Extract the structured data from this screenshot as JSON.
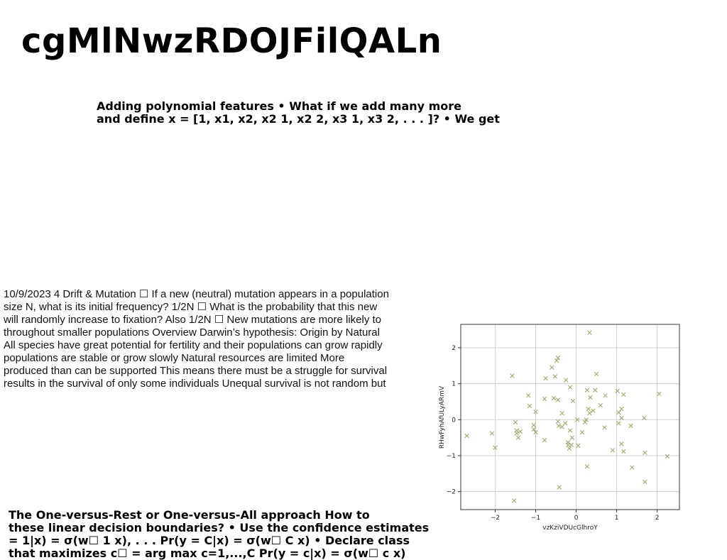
{
  "title": "cgMlNwzRDOJFilQALn",
  "para_bold": "Adding polynomial features • What if we add many more\nand define x = [1, x1, x2, x2 1, x2 2, x3 1, x3 2, . . . ]? • We get",
  "para_plain": "10/9/2023 4 Drift & Mutation ☐ If a new (neutral) mutation appears in a population\nsize N, what is its initial frequency? 1/2N ☐ What is the probability that this new\nwill randomly increase to fixation? Also 1/2N ☐ New mutations are more likely to\nthroughout smaller populations Overview Darwin’s hypothesis: Origin by Natural\nAll species have great potential for fertility and their populations can grow rapidly\npopulations are stable or grow slowly Natural resources are limited More\nproduced than can be supported This means there must be a struggle for survival\nresults in the survival of only some individuals Unequal survival is not random but",
  "para_bottom": "The One-versus-Rest or One-versus-All approach How to\nthese linear decision boundaries? • Use the confidence estimates\n= 1|x) = σ(w☐ 1 x), . . . Pr(y = C|x) = σ(w☐ C x) • Declare class\nthat maximizes c☐ = arg max c=1,...,C Pr(y = c|x) = σ(w☐ c x)",
  "chart_data": {
    "type": "scatter",
    "xlabel": "vzKziVDUcGlhroY",
    "ylabel": "RHwFyhAfULyARmV",
    "xlim": [
      -2.85,
      2.55
    ],
    "ylim": [
      -2.5,
      2.65
    ],
    "xticks": [
      -2,
      -1,
      0,
      1,
      2
    ],
    "yticks": [
      -2,
      -1,
      0,
      1,
      2
    ],
    "xtick_labels": [
      "−2",
      "−1",
      "0",
      "1",
      "2"
    ],
    "ytick_labels": [
      "−2",
      "−1",
      "0",
      "1",
      "2"
    ],
    "grid": true,
    "marker": "x",
    "color": "#98ac6a",
    "points": [
      [
        0.33,
        2.42
      ],
      [
        -0.45,
        1.72
      ],
      [
        -0.48,
        1.64
      ],
      [
        -0.6,
        1.45
      ],
      [
        0.5,
        1.27
      ],
      [
        -1.58,
        1.22
      ],
      [
        -0.52,
        1.2
      ],
      [
        -0.75,
        1.15
      ],
      [
        -0.25,
        1.1
      ],
      [
        -0.15,
        0.9
      ],
      [
        0.27,
        0.82
      ],
      [
        0.47,
        0.82
      ],
      [
        1.02,
        0.8
      ],
      [
        -0.08,
        0.52
      ],
      [
        -0.45,
        0.55
      ],
      [
        -0.55,
        0.6
      ],
      [
        -0.78,
        0.58
      ],
      [
        0.72,
        0.67
      ],
      [
        1.17,
        0.7
      ],
      [
        2.05,
        0.72
      ],
      [
        0.35,
        0.62
      ],
      [
        0.6,
        0.4
      ],
      [
        0.3,
        0.3
      ],
      [
        0.42,
        0.25
      ],
      [
        0.33,
        0.18
      ],
      [
        1.12,
        0.3
      ],
      [
        1.05,
        0.2
      ],
      [
        1.12,
        0.05
      ],
      [
        1.68,
        0.05
      ],
      [
        -0.35,
        0.18
      ],
      [
        -1.15,
        0.38
      ],
      [
        -1.18,
        0.67
      ],
      [
        -1.0,
        0.22
      ],
      [
        -1.5,
        -0.07
      ],
      [
        -1.47,
        -0.38
      ],
      [
        -1.43,
        -0.5
      ],
      [
        -1.38,
        -0.33
      ],
      [
        -1.47,
        -0.3
      ],
      [
        -1.05,
        -0.15
      ],
      [
        -1.05,
        -0.27
      ],
      [
        -1.0,
        -0.35
      ],
      [
        -0.45,
        -0.05
      ],
      [
        -0.43,
        -0.17
      ],
      [
        -0.35,
        -0.2
      ],
      [
        -0.27,
        -0.1
      ],
      [
        -0.15,
        -0.3
      ],
      [
        -0.1,
        -0.5
      ],
      [
        0.03,
        0.0
      ],
      [
        0.15,
        -0.35
      ],
      [
        0.22,
        -0.07
      ],
      [
        0.25,
        0.0
      ],
      [
        0.05,
        -0.72
      ],
      [
        -0.2,
        -0.7
      ],
      [
        -0.17,
        -0.8
      ],
      [
        -0.12,
        -0.7
      ],
      [
        -0.2,
        -0.63
      ],
      [
        0.7,
        -0.22
      ],
      [
        1.05,
        -0.1
      ],
      [
        1.35,
        -0.17
      ],
      [
        -0.78,
        -0.57
      ],
      [
        -2.08,
        -0.38
      ],
      [
        -2.7,
        -0.45
      ],
      [
        -2.0,
        -0.78
      ],
      [
        0.27,
        -1.3
      ],
      [
        0.9,
        -0.85
      ],
      [
        1.12,
        -0.67
      ],
      [
        1.17,
        -0.88
      ],
      [
        1.7,
        -0.92
      ],
      [
        2.25,
        -1.02
      ],
      [
        1.38,
        -1.33
      ],
      [
        1.7,
        -1.73
      ],
      [
        -0.42,
        -1.88
      ],
      [
        -1.53,
        -2.25
      ]
    ]
  }
}
